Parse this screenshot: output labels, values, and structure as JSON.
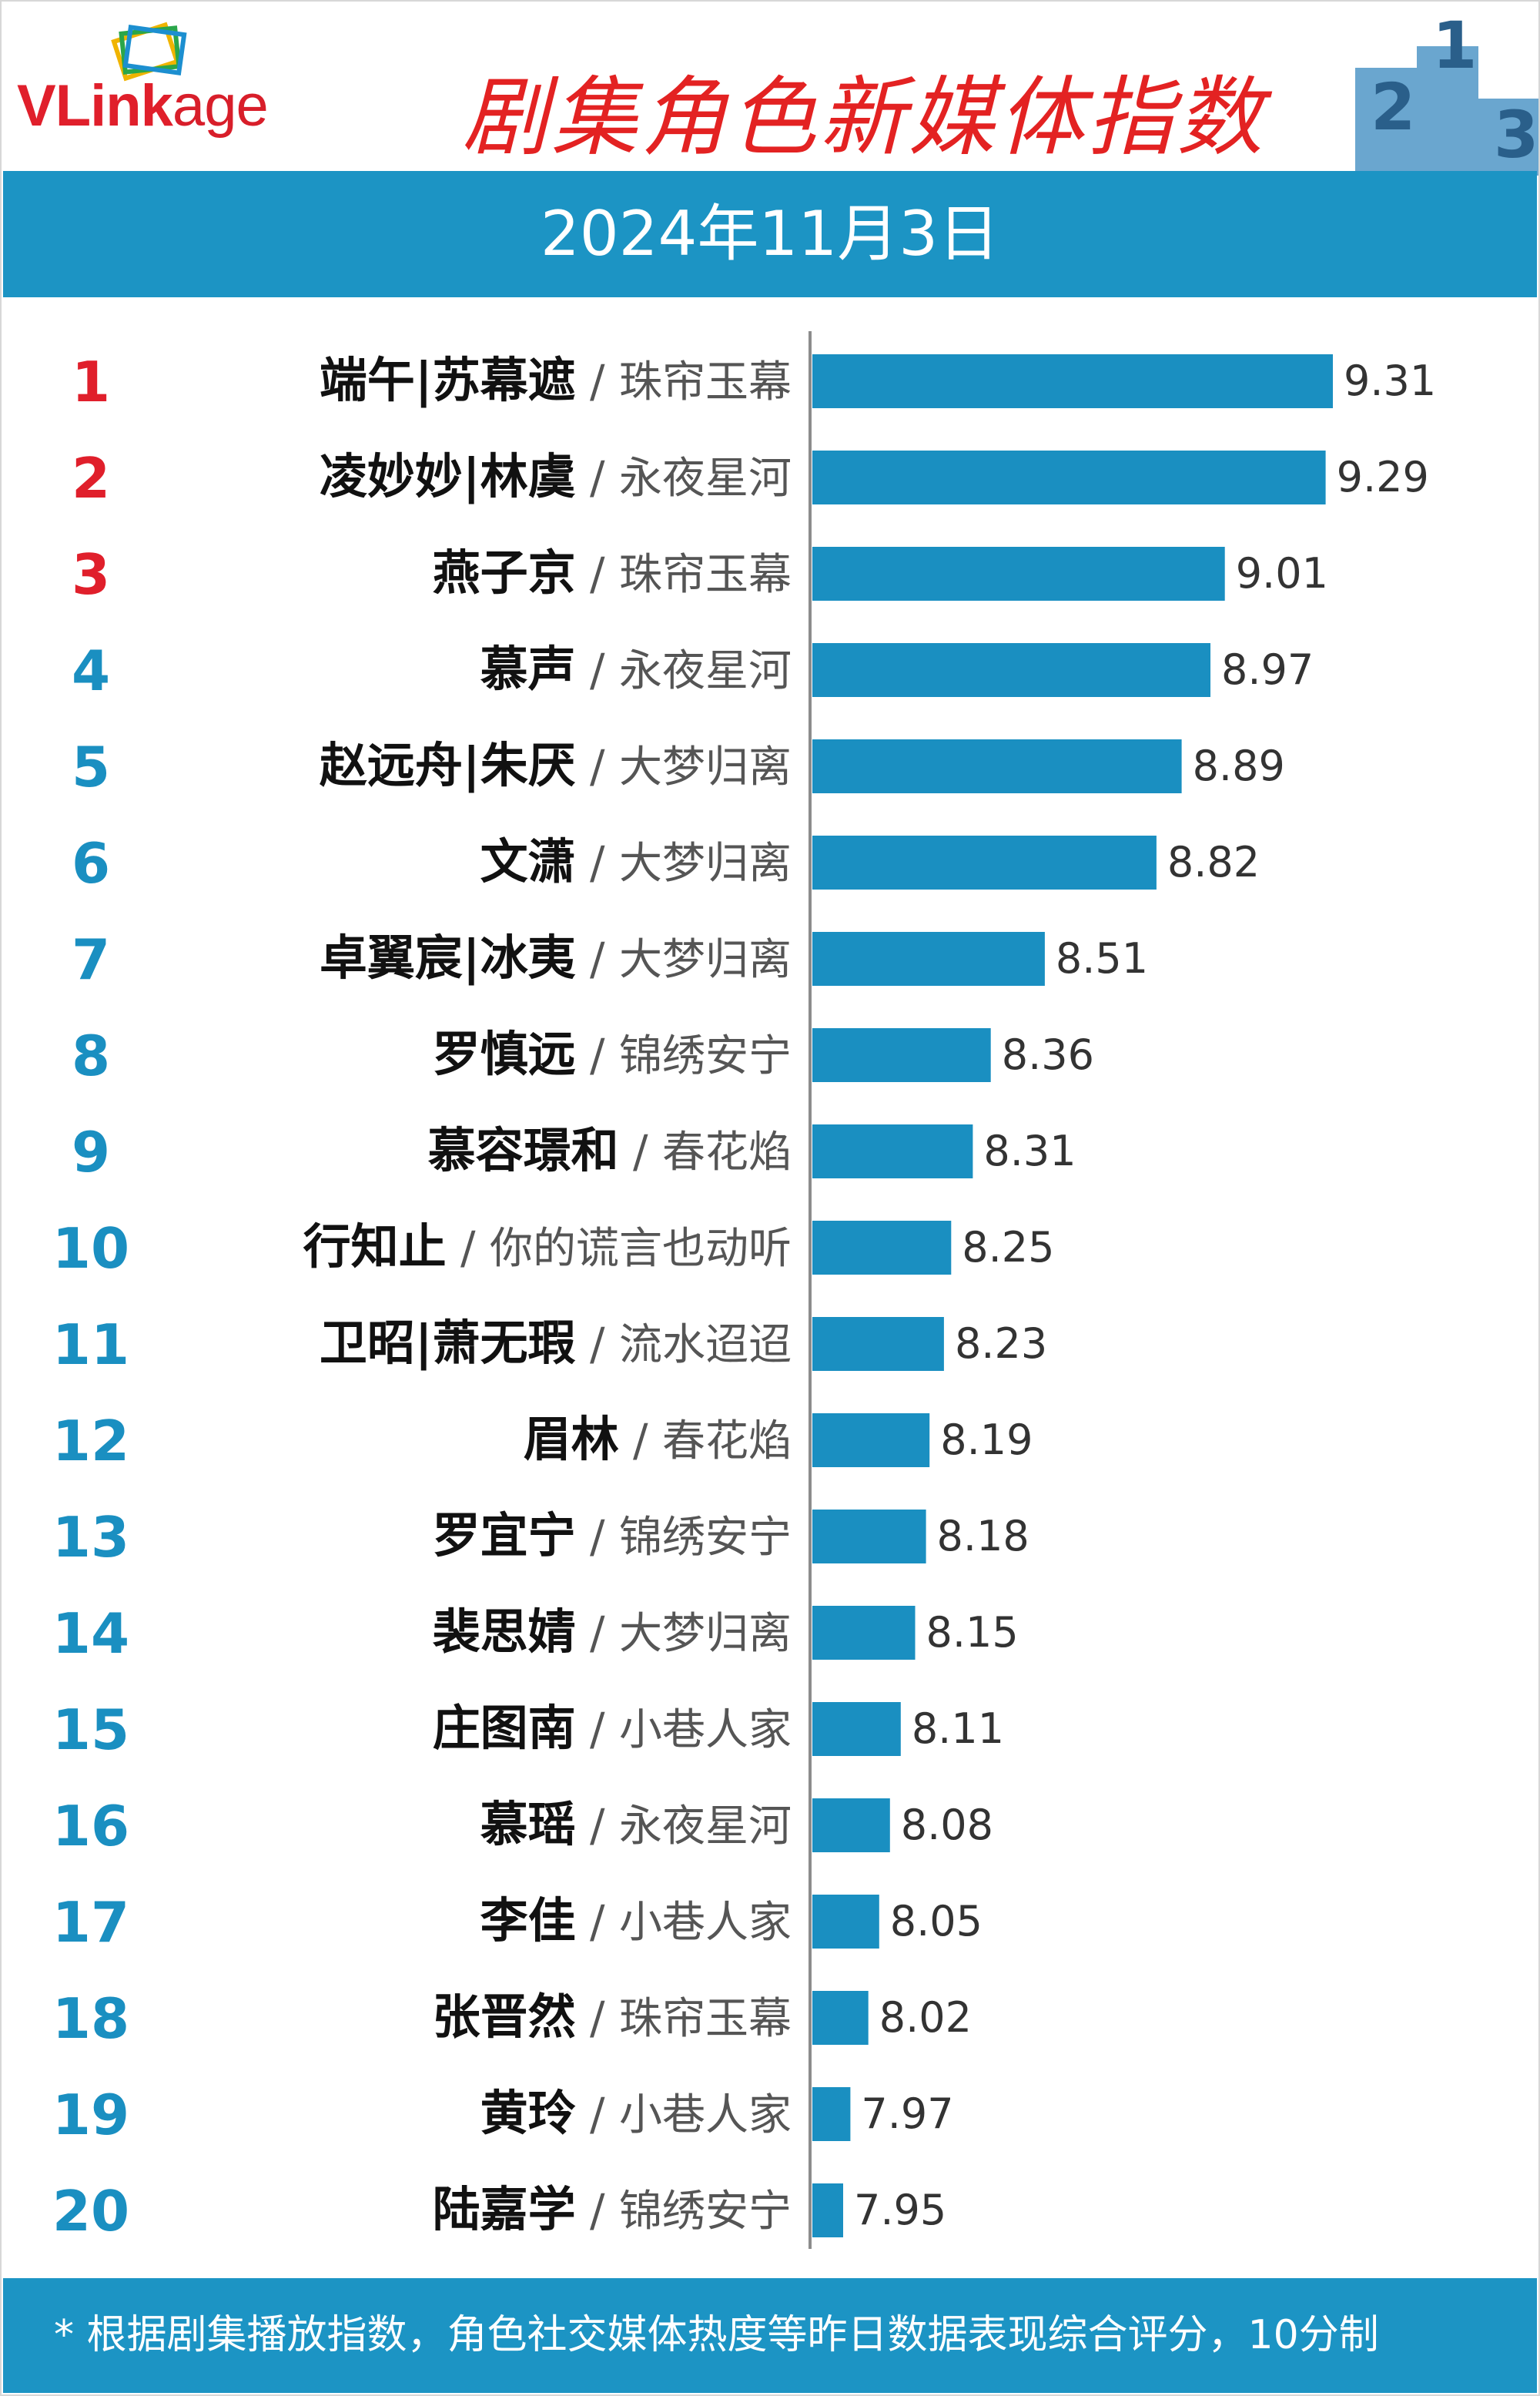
{
  "header": {
    "brand_prefix": "VLink",
    "brand_suffix": "age",
    "title": "剧集角色新媒体指数",
    "date": "2024年11月3日",
    "podium": [
      "2",
      "1",
      "3"
    ]
  },
  "colors": {
    "accent": "#1c94c4",
    "bar": "#1a8fc1",
    "top_rank": "#e01f2b",
    "rank": "#1a8fc1",
    "title": "#e32222"
  },
  "chart_data": {
    "type": "bar",
    "orientation": "horizontal",
    "title": "剧集角色新媒体指数",
    "subtitle": "2024年11月3日",
    "xlabel": "",
    "ylabel": "",
    "xlim": [
      7.8,
      9.4
    ],
    "grid": false,
    "rows": [
      {
        "rank": "1",
        "role": "端午|苏幕遮",
        "drama": "珠帘玉幕",
        "value": 9.31
      },
      {
        "rank": "2",
        "role": "凌妙妙|林虞",
        "drama": "永夜星河",
        "value": 9.29
      },
      {
        "rank": "3",
        "role": "燕子京",
        "drama": "珠帘玉幕",
        "value": 9.01
      },
      {
        "rank": "4",
        "role": "慕声",
        "drama": "永夜星河",
        "value": 8.97
      },
      {
        "rank": "5",
        "role": "赵远舟|朱厌",
        "drama": "大梦归离",
        "value": 8.89
      },
      {
        "rank": "6",
        "role": "文潇",
        "drama": "大梦归离",
        "value": 8.82
      },
      {
        "rank": "7",
        "role": "卓翼宸|冰夷",
        "drama": "大梦归离",
        "value": 8.51
      },
      {
        "rank": "8",
        "role": "罗慎远",
        "drama": "锦绣安宁",
        "value": 8.36
      },
      {
        "rank": "9",
        "role": "慕容璟和",
        "drama": "春花焰",
        "value": 8.31
      },
      {
        "rank": "10",
        "role": "行知止",
        "drama": "你的谎言也动听",
        "value": 8.25
      },
      {
        "rank": "11",
        "role": "卫昭|萧无瑕",
        "drama": "流水迢迢",
        "value": 8.23
      },
      {
        "rank": "12",
        "role": "眉林",
        "drama": "春花焰",
        "value": 8.19
      },
      {
        "rank": "13",
        "role": "罗宜宁",
        "drama": "锦绣安宁",
        "value": 8.18
      },
      {
        "rank": "14",
        "role": "裴思婧",
        "drama": "大梦归离",
        "value": 8.15
      },
      {
        "rank": "15",
        "role": "庄图南",
        "drama": "小巷人家",
        "value": 8.11
      },
      {
        "rank": "16",
        "role": "慕瑶",
        "drama": "永夜星河",
        "value": 8.08
      },
      {
        "rank": "17",
        "role": "李佳",
        "drama": "小巷人家",
        "value": 8.05
      },
      {
        "rank": "18",
        "role": "张晋然",
        "drama": "珠帘玉幕",
        "value": 8.02
      },
      {
        "rank": "19",
        "role": "黄玲",
        "drama": "小巷人家",
        "value": 7.97
      },
      {
        "rank": "20",
        "role": "陆嘉学",
        "drama": "锦绣安宁",
        "value": 7.95
      }
    ]
  },
  "footer": {
    "note": "* 根据剧集播放指数，角色社交媒体热度等昨日数据表现综合评分，10分制"
  }
}
